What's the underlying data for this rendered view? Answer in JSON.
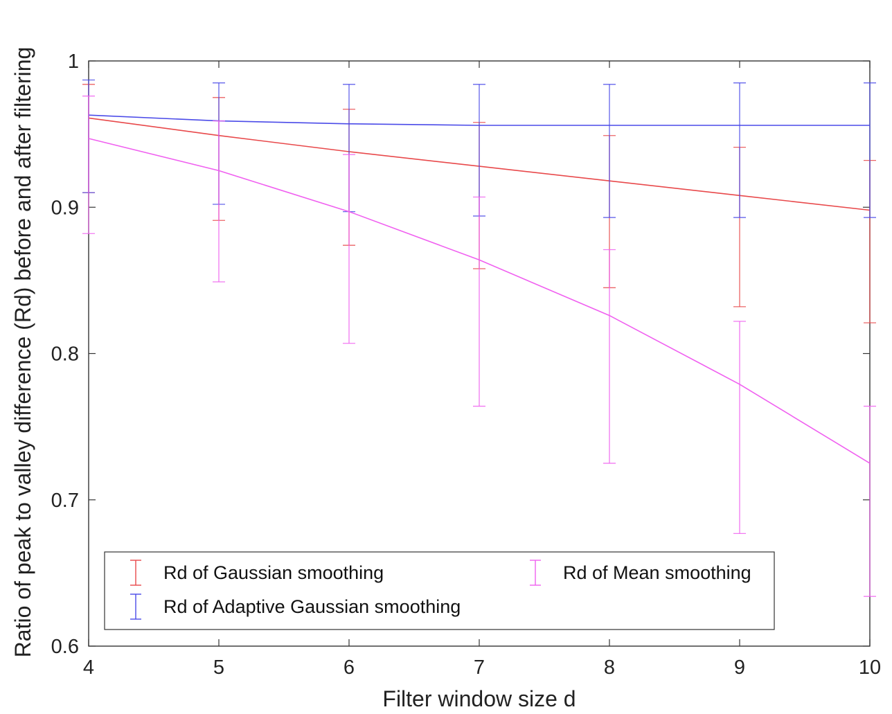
{
  "chart_data": {
    "type": "line",
    "xlabel": "Filter window size d",
    "ylabel": "Ratio of peak to valley difference (Rd) before and after filtering",
    "x": [
      4,
      5,
      6,
      7,
      8,
      9,
      10
    ],
    "xlim": [
      4,
      10
    ],
    "ylim": [
      0.6,
      1.0
    ],
    "xticks": [
      "4",
      "5",
      "6",
      "7",
      "8",
      "9",
      "10"
    ],
    "yticks": [
      "0.6",
      "0.7",
      "0.8",
      "0.9",
      "1"
    ],
    "grid": false,
    "legend_position": "bottom-left",
    "series": [
      {
        "name": "Rd of Gaussian smoothing",
        "color": "#e8484a",
        "values": [
          0.961,
          0.949,
          0.938,
          0.928,
          0.918,
          0.908,
          0.898
        ],
        "err_low": [
          0.91,
          0.891,
          0.874,
          0.858,
          0.845,
          0.832,
          0.821
        ],
        "err_high": [
          0.984,
          0.975,
          0.967,
          0.958,
          0.949,
          0.941,
          0.932
        ]
      },
      {
        "name": "Rd of Adaptive Gaussian smoothing",
        "color": "#4a4ae8",
        "values": [
          0.963,
          0.959,
          0.957,
          0.956,
          0.956,
          0.956,
          0.956
        ],
        "err_low": [
          0.91,
          0.902,
          0.897,
          0.894,
          0.893,
          0.893,
          0.893
        ],
        "err_high": [
          0.987,
          0.985,
          0.984,
          0.984,
          0.984,
          0.985,
          0.985
        ]
      },
      {
        "name": "Rd of Mean smoothing",
        "color": "#f060f0",
        "values": [
          0.947,
          0.925,
          0.897,
          0.864,
          0.826,
          0.779,
          0.725
        ],
        "err_low": [
          0.882,
          0.849,
          0.807,
          0.764,
          0.725,
          0.677,
          0.634
        ],
        "err_high": [
          0.976,
          0.959,
          0.936,
          0.907,
          0.871,
          0.822,
          0.764
        ]
      }
    ]
  }
}
